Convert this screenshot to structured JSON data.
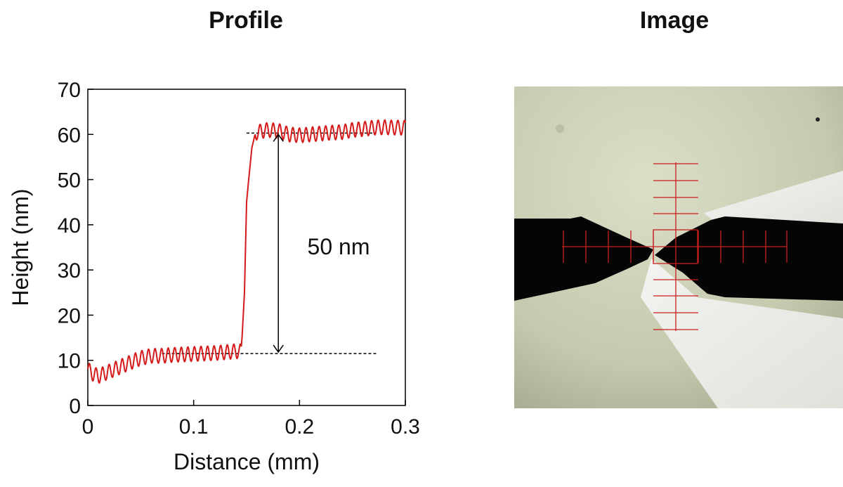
{
  "panels": {
    "left_title": "Profile",
    "right_title": "Image"
  },
  "chart_data": {
    "type": "line",
    "title": "Profile",
    "xlabel": "Distance (mm)",
    "ylabel": "Height (nm)",
    "xlim": [
      0,
      0.3
    ],
    "ylim": [
      0,
      70
    ],
    "xticks": [
      0,
      0.1,
      0.2,
      0.3
    ],
    "xtick_labels": [
      "0",
      "0.1",
      "0.2",
      "0.3"
    ],
    "yticks": [
      0,
      10,
      20,
      30,
      40,
      50,
      60,
      70
    ],
    "ytick_labels": [
      "0",
      "10",
      "20",
      "30",
      "40",
      "50",
      "60",
      "70"
    ],
    "grid": false,
    "series_color": "#d41a1a",
    "series": [
      {
        "x": [
          0,
          0.005,
          0.01,
          0.02,
          0.03,
          0.04,
          0.05,
          0.06,
          0.07,
          0.08,
          0.09,
          0.1,
          0.11,
          0.12,
          0.13,
          0.14,
          0.145,
          0.148,
          0.15,
          0.152,
          0.155,
          0.158,
          0.16,
          0.17,
          0.18,
          0.19,
          0.2,
          0.21,
          0.22,
          0.23,
          0.24,
          0.25,
          0.26,
          0.27,
          0.28,
          0.29,
          0.3
        ],
        "y": [
          8,
          7,
          6.5,
          7.5,
          8.5,
          9.5,
          10.5,
          11,
          11,
          11.2,
          11.3,
          11.4,
          11.5,
          11.6,
          11.8,
          12,
          12,
          25,
          45,
          50,
          57,
          60,
          60.5,
          61,
          60.8,
          60,
          59.8,
          60,
          60.2,
          60.4,
          60.5,
          61,
          61.2,
          61.5,
          61.6,
          61.5,
          61.5
        ]
      }
    ],
    "reference_lines": {
      "lower": 11.5,
      "upper": 60.3
    },
    "annotation": "50 nm"
  },
  "image_panel": {
    "background_color": "#cfd2b8",
    "electrode_color": "#050505",
    "crosshair_color": "#c81e1e"
  }
}
